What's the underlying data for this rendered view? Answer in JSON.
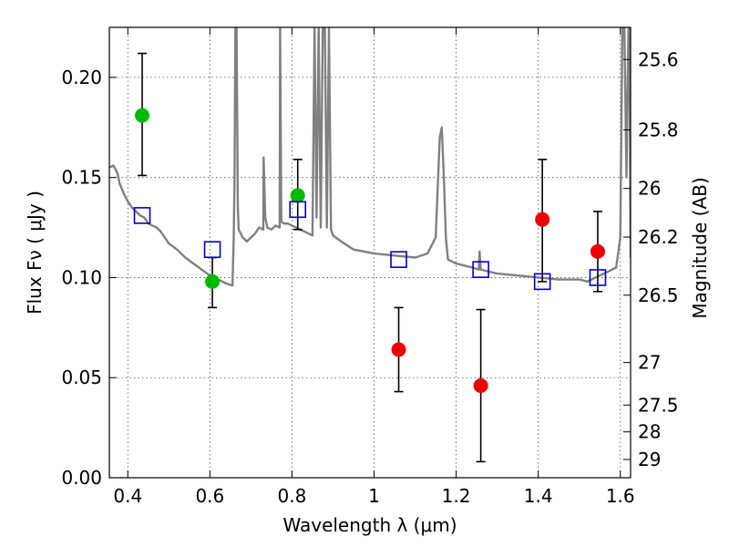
{
  "chart_data": {
    "type": "scatter",
    "title": "",
    "xlabel": "Wavelength  λ (μm)",
    "ylabel": "Flux  Fν  ( μJy )",
    "y2label": "Magnitude (AB)",
    "xlim": [
      0.355,
      1.625
    ],
    "ylim": [
      0.0,
      0.225
    ],
    "grid": true,
    "x_ticks": [
      0.4,
      0.6,
      0.8,
      1.0,
      1.2,
      1.4,
      1.6
    ],
    "x_tick_labels": [
      "0.4",
      "0.6",
      "0.8",
      "1",
      "1.2",
      "1.4",
      "1.6"
    ],
    "y_ticks": [
      0.0,
      0.05,
      0.1,
      0.15,
      0.2
    ],
    "y_tick_labels": [
      "0.00",
      "0.05",
      "0.10",
      "0.15",
      "0.20"
    ],
    "y2_ticks": [
      {
        "label": "25.6",
        "mag": 25.6
      },
      {
        "label": "25.8",
        "mag": 25.8
      },
      {
        "label": "26",
        "mag": 26.0
      },
      {
        "label": "26.2",
        "mag": 26.2
      },
      {
        "label": "26.5",
        "mag": 26.5
      },
      {
        "label": "27",
        "mag": 27.0
      },
      {
        "label": "27.5",
        "mag": 27.5
      },
      {
        "label": "28",
        "mag": 28.0
      },
      {
        "label": "29",
        "mag": 29.0
      }
    ],
    "series": [
      {
        "marker": "circle",
        "color": "#00bb00",
        "points": [
          {
            "x": 0.435,
            "y": 0.181,
            "ylo": 0.151,
            "yhi": 0.212
          },
          {
            "x": 0.606,
            "y": 0.098,
            "ylo": 0.085,
            "yhi": 0.11
          },
          {
            "x": 0.814,
            "y": 0.141,
            "ylo": 0.124,
            "yhi": 0.159
          }
        ]
      },
      {
        "marker": "circle",
        "color": "#ee0000",
        "points": [
          {
            "x": 1.06,
            "y": 0.064,
            "ylo": 0.043,
            "yhi": 0.085
          },
          {
            "x": 1.26,
            "y": 0.046,
            "ylo": 0.008,
            "yhi": 0.084
          },
          {
            "x": 1.41,
            "y": 0.129,
            "ylo": 0.098,
            "yhi": 0.159
          },
          {
            "x": 1.545,
            "y": 0.113,
            "ylo": 0.093,
            "yhi": 0.133
          }
        ]
      },
      {
        "marker": "square",
        "color": "#0000cc",
        "points": [
          {
            "x": 0.435,
            "y": 0.131
          },
          {
            "x": 0.606,
            "y": 0.114
          },
          {
            "x": 0.814,
            "y": 0.134
          },
          {
            "x": 1.06,
            "y": 0.109
          },
          {
            "x": 1.26,
            "y": 0.104
          },
          {
            "x": 1.41,
            "y": 0.098
          },
          {
            "x": 1.545,
            "y": 0.1
          }
        ]
      },
      {
        "marker": "line",
        "color": "#808080",
        "x": [
          0.355,
          0.365,
          0.375,
          0.38,
          0.39,
          0.4,
          0.41,
          0.42,
          0.43,
          0.44,
          0.45,
          0.46,
          0.47,
          0.48,
          0.49,
          0.5,
          0.52,
          0.54,
          0.56,
          0.58,
          0.6,
          0.62,
          0.64,
          0.655,
          0.658,
          0.66,
          0.662,
          0.665,
          0.668,
          0.67,
          0.68,
          0.69,
          0.7,
          0.71,
          0.72,
          0.73,
          0.731,
          0.735,
          0.74,
          0.75,
          0.76,
          0.77,
          0.771,
          0.774,
          0.78,
          0.79,
          0.8,
          0.81,
          0.82,
          0.83,
          0.84,
          0.85,
          0.855,
          0.86,
          0.865,
          0.87,
          0.875,
          0.88,
          0.885,
          0.89,
          0.895,
          0.9,
          0.92,
          0.95,
          1.0,
          1.05,
          1.1,
          1.13,
          1.15,
          1.16,
          1.165,
          1.17,
          1.175,
          1.18,
          1.2,
          1.22,
          1.24,
          1.255,
          1.257,
          1.26,
          1.28,
          1.3,
          1.35,
          1.4,
          1.45,
          1.5,
          1.52,
          1.55,
          1.57,
          1.59,
          1.6,
          1.605,
          1.61,
          1.615,
          1.62,
          1.622,
          1.625
        ],
        "y": [
          0.155,
          0.156,
          0.152,
          0.147,
          0.142,
          0.138,
          0.135,
          0.133,
          0.131,
          0.13,
          0.127,
          0.126,
          0.125,
          0.123,
          0.12,
          0.117,
          0.114,
          0.11,
          0.107,
          0.104,
          0.101,
          0.099,
          0.097,
          0.096,
          0.12,
          0.15,
          0.225,
          0.225,
          0.135,
          0.124,
          0.12,
          0.118,
          0.12,
          0.122,
          0.125,
          0.124,
          0.16,
          0.13,
          0.125,
          0.124,
          0.126,
          0.125,
          0.225,
          0.128,
          0.127,
          0.127,
          0.126,
          0.125,
          0.124,
          0.123,
          0.122,
          0.121,
          0.225,
          0.13,
          0.225,
          0.125,
          0.225,
          0.225,
          0.125,
          0.225,
          0.124,
          0.121,
          0.118,
          0.114,
          0.112,
          0.111,
          0.11,
          0.112,
          0.12,
          0.17,
          0.175,
          0.15,
          0.12,
          0.109,
          0.107,
          0.106,
          0.105,
          0.104,
          0.113,
          0.104,
          0.103,
          0.102,
          0.101,
          0.1,
          0.099,
          0.099,
          0.098,
          0.101,
          0.103,
          0.105,
          0.12,
          0.225,
          0.225,
          0.15,
          0.225,
          0.225,
          0.11
        ]
      }
    ]
  }
}
